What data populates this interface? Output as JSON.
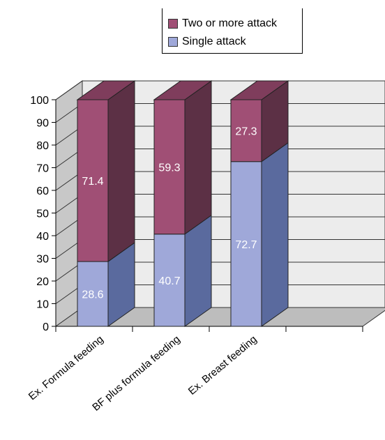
{
  "chart_data": {
    "type": "bar",
    "stacked": true,
    "style": "3d",
    "categories": [
      "Ex. Formula feeding",
      "BF plus formula feeding",
      "Ex. Breast feeding"
    ],
    "series": [
      {
        "name": "Single attack",
        "values": [
          28.6,
          40.7,
          72.7
        ],
        "color": "#9FA8D9",
        "side_color": "#5A6A9E",
        "top_color": "#8090C8"
      },
      {
        "name": "Two or more attack",
        "values": [
          71.4,
          59.3,
          27.3
        ],
        "color": "#A04F75",
        "side_color": "#5C3045",
        "top_color": "#7F3D5C"
      }
    ],
    "data_labels": {
      "Single attack": [
        "28.6",
        "40.7",
        "72.7"
      ],
      "Two or more attack": [
        "71.4",
        "59.3",
        "27.3"
      ]
    },
    "y_ticks": [
      "0",
      "10",
      "20",
      "30",
      "40",
      "50",
      "60",
      "70",
      "80",
      "90",
      "100"
    ],
    "ylim": [
      0,
      100
    ],
    "title": "",
    "xlabel": "",
    "ylabel": "",
    "grid": true,
    "legend_position": "top-center"
  },
  "legend": [
    {
      "label": "Two or more attack",
      "color": "#A04F75"
    },
    {
      "label": "Single attack",
      "color": "#9FA8D9"
    }
  ]
}
